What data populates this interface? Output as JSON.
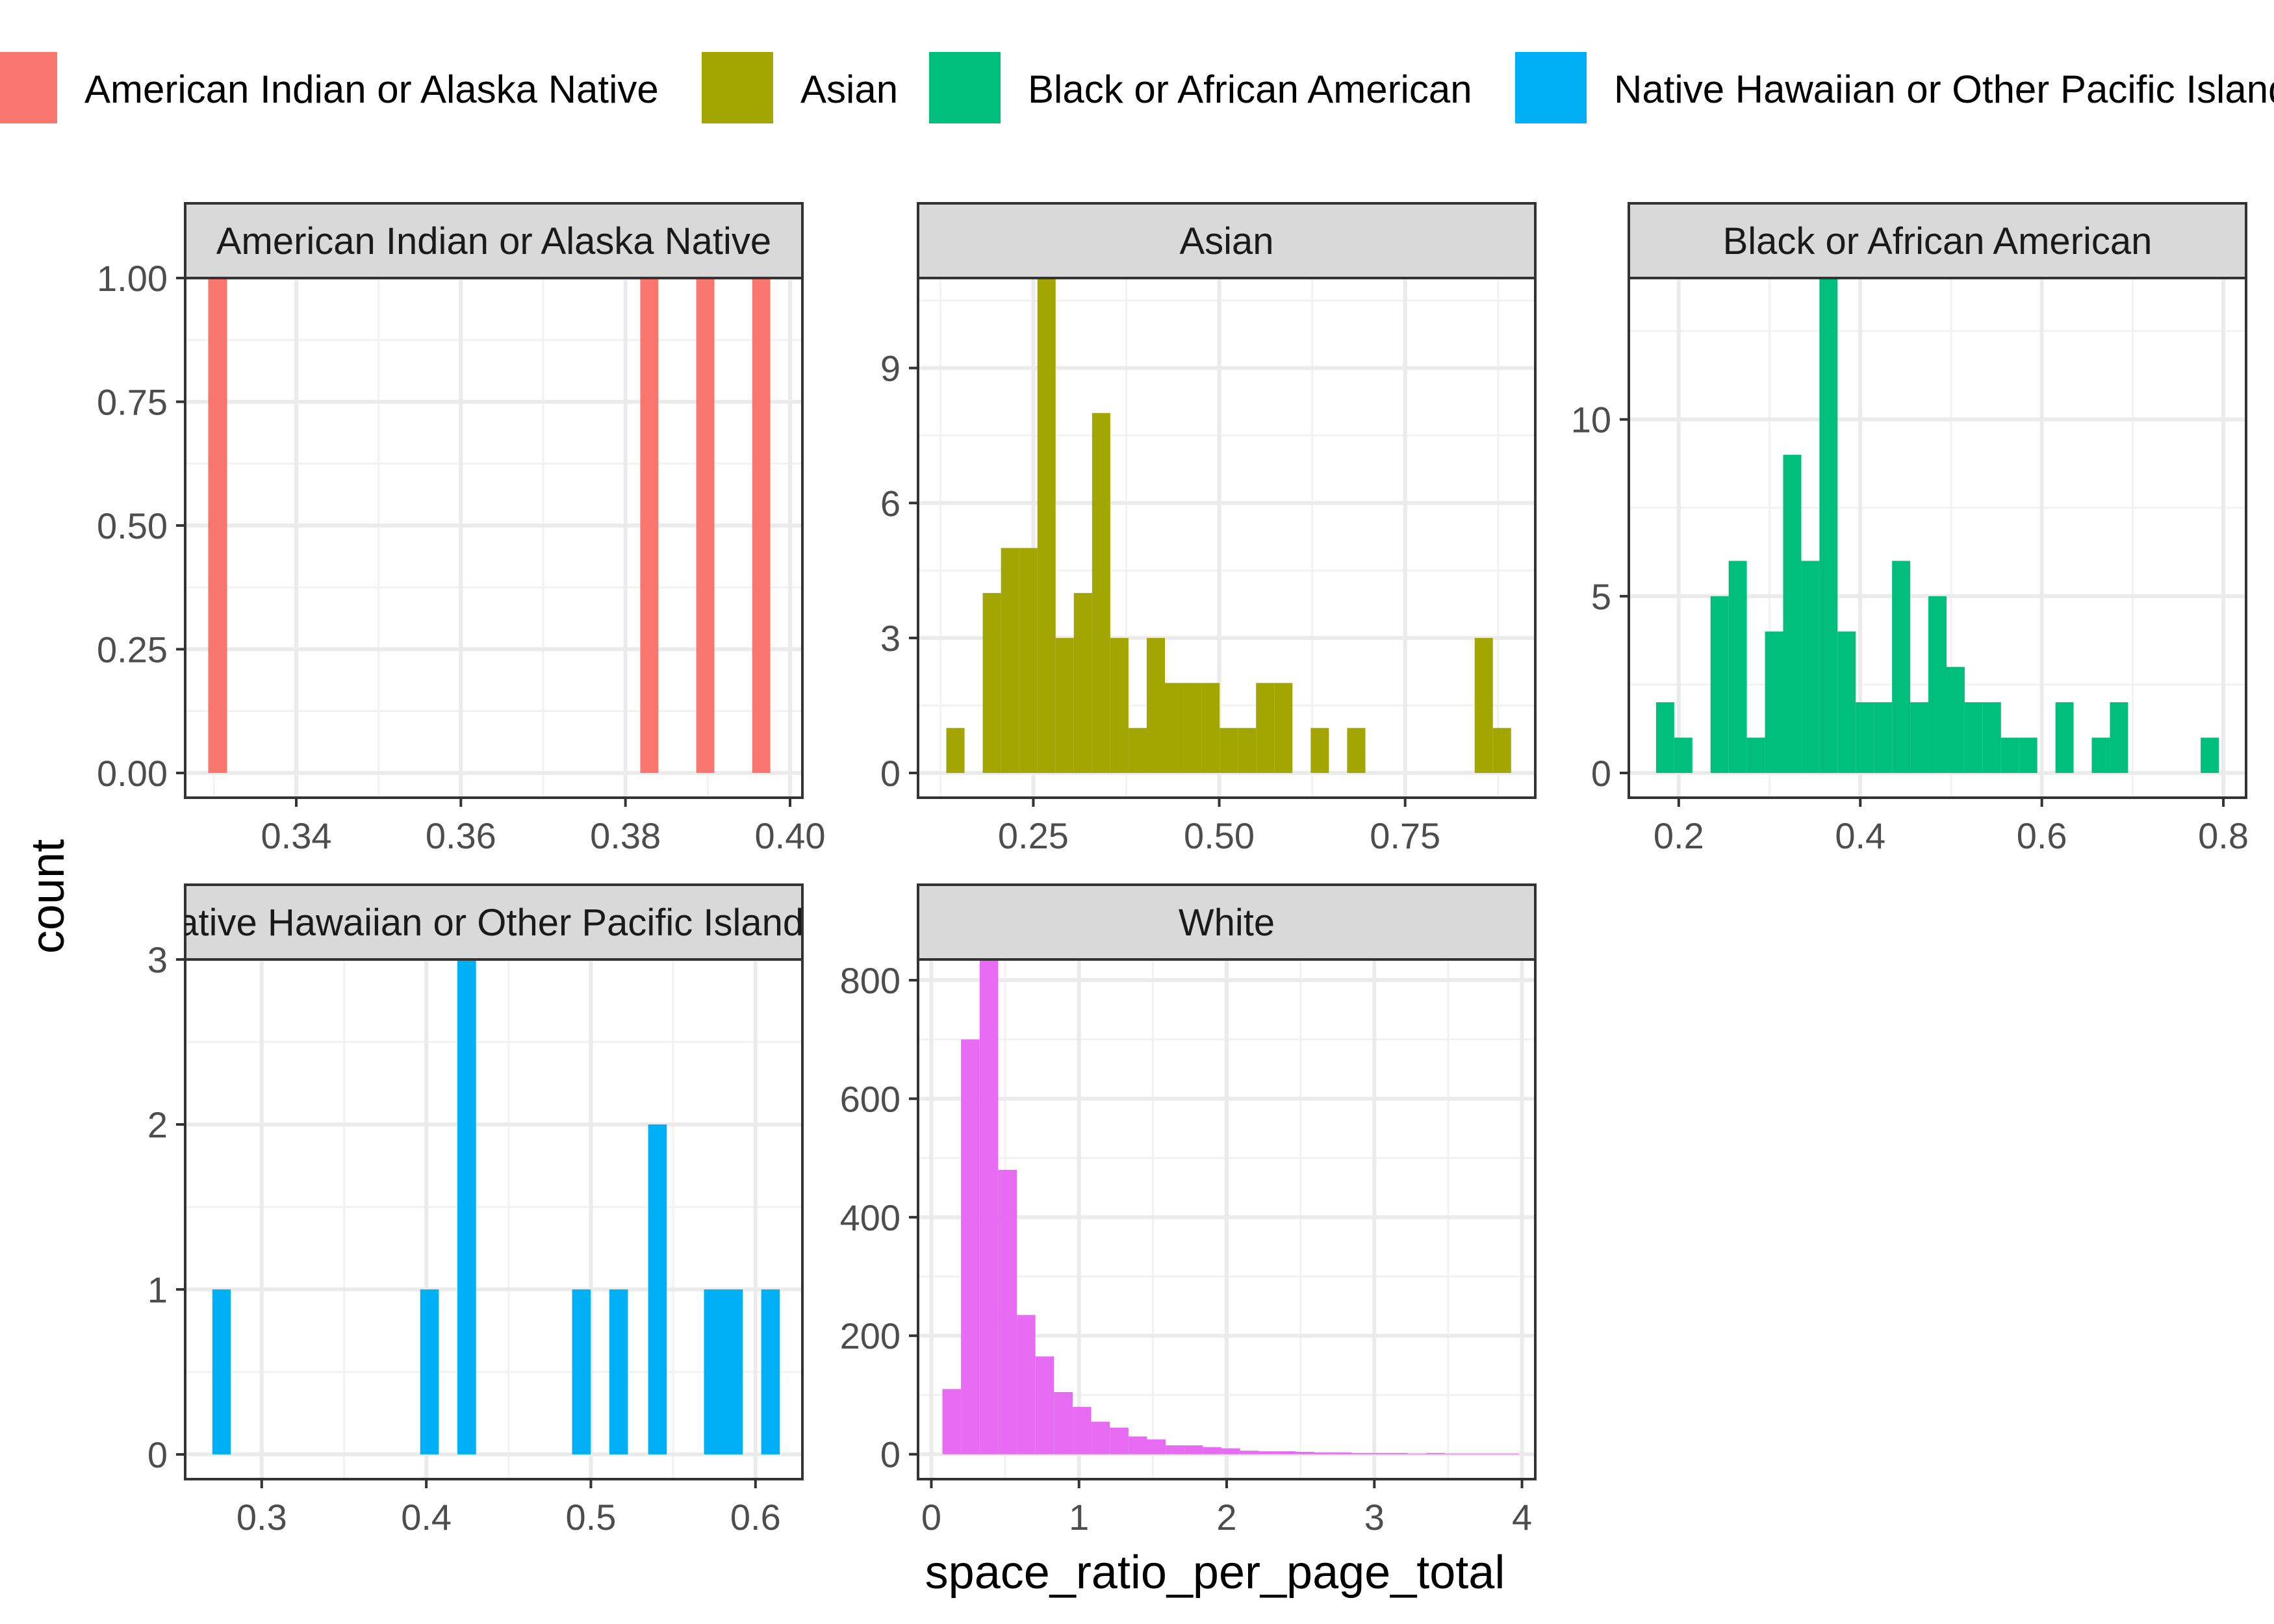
{
  "chart_data": {
    "type": "bar",
    "facet_wrap": true,
    "xlabel": "space_ratio_per_page_total",
    "ylabel": "count",
    "legend_position": "top",
    "grid": true,
    "legend": [
      {
        "label": "American Indian or Alaska Native",
        "color": "#F8766D"
      },
      {
        "label": "Asian",
        "color": "#A3A500"
      },
      {
        "label": "Black or African American",
        "color": "#00BF7D"
      },
      {
        "label": "Native Hawaiian or Other Pacific Islander",
        "color": "#00B0F6"
      }
    ],
    "panels": [
      {
        "id": "aian",
        "title": "American Indian or Alaska Native",
        "color": "#F8766D",
        "xlim": [
          0.3265,
          0.4015
        ],
        "ylim": [
          -0.05,
          1.0
        ],
        "xticks": [
          0.34,
          0.36,
          0.38,
          0.4
        ],
        "xtick_labels": [
          "0.34",
          "0.36",
          "0.38",
          "0.40"
        ],
        "yticks": [
          0,
          0.25,
          0.5,
          0.75,
          1.0
        ],
        "ytick_labels": [
          "0.00",
          "0.25",
          "0.50",
          "0.75",
          "1.00"
        ],
        "bars": [
          {
            "x0": 0.3293,
            "x1": 0.3316,
            "count": 1
          },
          {
            "x0": 0.3818,
            "x1": 0.384,
            "count": 1
          },
          {
            "x0": 0.3886,
            "x1": 0.3908,
            "count": 1
          },
          {
            "x0": 0.3954,
            "x1": 0.3976,
            "count": 1
          }
        ]
      },
      {
        "id": "asian",
        "title": "Asian",
        "color": "#A3A500",
        "xlim": [
          0.095,
          0.925
        ],
        "ylim": [
          -0.55,
          11.0
        ],
        "xticks": [
          0.25,
          0.5,
          0.75
        ],
        "xtick_labels": [
          "0.25",
          "0.50",
          "0.75"
        ],
        "yticks": [
          0,
          3,
          6,
          9
        ],
        "ytick_labels": [
          "0",
          "3",
          "6",
          "9"
        ],
        "bars": [
          {
            "x0": 0.133,
            "x1": 0.1575,
            "count": 1
          },
          {
            "x0": 0.182,
            "x1": 0.2065,
            "count": 4
          },
          {
            "x0": 0.2065,
            "x1": 0.231,
            "count": 5
          },
          {
            "x0": 0.231,
            "x1": 0.2555,
            "count": 5
          },
          {
            "x0": 0.2555,
            "x1": 0.28,
            "count": 11
          },
          {
            "x0": 0.28,
            "x1": 0.3045,
            "count": 3
          },
          {
            "x0": 0.3045,
            "x1": 0.329,
            "count": 4
          },
          {
            "x0": 0.329,
            "x1": 0.3535,
            "count": 8
          },
          {
            "x0": 0.3535,
            "x1": 0.378,
            "count": 3
          },
          {
            "x0": 0.378,
            "x1": 0.4025,
            "count": 1
          },
          {
            "x0": 0.4025,
            "x1": 0.427,
            "count": 3
          },
          {
            "x0": 0.427,
            "x1": 0.4515,
            "count": 2
          },
          {
            "x0": 0.4515,
            "x1": 0.476,
            "count": 2
          },
          {
            "x0": 0.476,
            "x1": 0.5005,
            "count": 2
          },
          {
            "x0": 0.5005,
            "x1": 0.525,
            "count": 1
          },
          {
            "x0": 0.525,
            "x1": 0.5495,
            "count": 1
          },
          {
            "x0": 0.5495,
            "x1": 0.574,
            "count": 2
          },
          {
            "x0": 0.574,
            "x1": 0.5985,
            "count": 2
          },
          {
            "x0": 0.623,
            "x1": 0.6475,
            "count": 1
          },
          {
            "x0": 0.672,
            "x1": 0.6965,
            "count": 1
          },
          {
            "x0": 0.8435,
            "x1": 0.868,
            "count": 3
          },
          {
            "x0": 0.868,
            "x1": 0.8925,
            "count": 1
          }
        ]
      },
      {
        "id": "black",
        "title": "Black or African American",
        "color": "#00BF7D",
        "xlim": [
          0.145,
          0.825
        ],
        "ylim": [
          -0.7,
          14.0
        ],
        "xticks": [
          0.2,
          0.4,
          0.6,
          0.8
        ],
        "xtick_labels": [
          "0.2",
          "0.4",
          "0.6",
          "0.8"
        ],
        "yticks": [
          0,
          5,
          10
        ],
        "ytick_labels": [
          "0",
          "5",
          "10"
        ],
        "bars": [
          {
            "x0": 0.175,
            "x1": 0.195,
            "count": 2
          },
          {
            "x0": 0.195,
            "x1": 0.215,
            "count": 1
          },
          {
            "x0": 0.235,
            "x1": 0.255,
            "count": 5
          },
          {
            "x0": 0.255,
            "x1": 0.275,
            "count": 6
          },
          {
            "x0": 0.275,
            "x1": 0.295,
            "count": 1
          },
          {
            "x0": 0.295,
            "x1": 0.315,
            "count": 4
          },
          {
            "x0": 0.315,
            "x1": 0.335,
            "count": 9
          },
          {
            "x0": 0.335,
            "x1": 0.355,
            "count": 6
          },
          {
            "x0": 0.355,
            "x1": 0.375,
            "count": 14
          },
          {
            "x0": 0.375,
            "x1": 0.395,
            "count": 4
          },
          {
            "x0": 0.395,
            "x1": 0.415,
            "count": 2
          },
          {
            "x0": 0.415,
            "x1": 0.435,
            "count": 2
          },
          {
            "x0": 0.435,
            "x1": 0.455,
            "count": 6
          },
          {
            "x0": 0.455,
            "x1": 0.475,
            "count": 2
          },
          {
            "x0": 0.475,
            "x1": 0.495,
            "count": 5
          },
          {
            "x0": 0.495,
            "x1": 0.515,
            "count": 3
          },
          {
            "x0": 0.515,
            "x1": 0.535,
            "count": 2
          },
          {
            "x0": 0.535,
            "x1": 0.555,
            "count": 2
          },
          {
            "x0": 0.555,
            "x1": 0.575,
            "count": 1
          },
          {
            "x0": 0.575,
            "x1": 0.595,
            "count": 1
          },
          {
            "x0": 0.615,
            "x1": 0.635,
            "count": 2
          },
          {
            "x0": 0.655,
            "x1": 0.675,
            "count": 1
          },
          {
            "x0": 0.675,
            "x1": 0.695,
            "count": 2
          },
          {
            "x0": 0.775,
            "x1": 0.795,
            "count": 1
          }
        ]
      },
      {
        "id": "nhpi",
        "title": "Native Hawaiian or Other Pacific Islander",
        "color": "#00B0F6",
        "xlim": [
          0.2535,
          0.6285
        ],
        "ylim": [
          -0.15,
          3.0
        ],
        "xticks": [
          0.3,
          0.4,
          0.5,
          0.6
        ],
        "xtick_labels": [
          "0.3",
          "0.4",
          "0.5",
          "0.6"
        ],
        "yticks": [
          0,
          1,
          2,
          3
        ],
        "ytick_labels": [
          "0",
          "1",
          "2",
          "3"
        ],
        "bars": [
          {
            "x0": 0.27,
            "x1": 0.2812,
            "count": 1
          },
          {
            "x0": 0.3963,
            "x1": 0.4076,
            "count": 1
          },
          {
            "x0": 0.4189,
            "x1": 0.4302,
            "count": 3
          },
          {
            "x0": 0.4886,
            "x1": 0.4999,
            "count": 1
          },
          {
            "x0": 0.5112,
            "x1": 0.5225,
            "count": 1
          },
          {
            "x0": 0.5348,
            "x1": 0.5461,
            "count": 2
          },
          {
            "x0": 0.5687,
            "x1": 0.5923,
            "count": 1
          },
          {
            "x0": 0.6035,
            "x1": 0.6148,
            "count": 1
          }
        ]
      },
      {
        "id": "white",
        "title": "White",
        "color": "#E76BF3",
        "xlim": [
          -0.09,
          4.09
        ],
        "ylim": [
          -42,
          835
        ],
        "xticks": [
          0,
          1,
          2,
          3,
          4
        ],
        "xtick_labels": [
          "0",
          "1",
          "2",
          "3",
          "4"
        ],
        "yticks": [
          0,
          200,
          400,
          600,
          800
        ],
        "ytick_labels": [
          "0",
          "200",
          "400",
          "600",
          "800"
        ],
        "bars": [
          {
            "x0": 0.075,
            "x1": 0.201,
            "count": 110
          },
          {
            "x0": 0.201,
            "x1": 0.327,
            "count": 700
          },
          {
            "x0": 0.327,
            "x1": 0.453,
            "count": 835
          },
          {
            "x0": 0.453,
            "x1": 0.579,
            "count": 480
          },
          {
            "x0": 0.579,
            "x1": 0.705,
            "count": 235
          },
          {
            "x0": 0.705,
            "x1": 0.831,
            "count": 165
          },
          {
            "x0": 0.831,
            "x1": 0.957,
            "count": 105
          },
          {
            "x0": 0.957,
            "x1": 1.083,
            "count": 80
          },
          {
            "x0": 1.083,
            "x1": 1.209,
            "count": 55
          },
          {
            "x0": 1.209,
            "x1": 1.335,
            "count": 45
          },
          {
            "x0": 1.335,
            "x1": 1.461,
            "count": 30
          },
          {
            "x0": 1.461,
            "x1": 1.587,
            "count": 25
          },
          {
            "x0": 1.587,
            "x1": 1.713,
            "count": 15
          },
          {
            "x0": 1.713,
            "x1": 1.839,
            "count": 15
          },
          {
            "x0": 1.839,
            "x1": 1.965,
            "count": 12
          },
          {
            "x0": 1.965,
            "x1": 2.091,
            "count": 10
          },
          {
            "x0": 2.091,
            "x1": 2.217,
            "count": 6
          },
          {
            "x0": 2.217,
            "x1": 2.343,
            "count": 5
          },
          {
            "x0": 2.343,
            "x1": 2.469,
            "count": 5
          },
          {
            "x0": 2.469,
            "x1": 2.595,
            "count": 4
          },
          {
            "x0": 2.595,
            "x1": 2.721,
            "count": 3
          },
          {
            "x0": 2.721,
            "x1": 2.847,
            "count": 3
          },
          {
            "x0": 2.847,
            "x1": 2.973,
            "count": 2
          },
          {
            "x0": 2.973,
            "x1": 3.099,
            "count": 2
          },
          {
            "x0": 3.099,
            "x1": 3.225,
            "count": 2
          },
          {
            "x0": 3.225,
            "x1": 3.351,
            "count": 1
          },
          {
            "x0": 3.351,
            "x1": 3.477,
            "count": 2
          },
          {
            "x0": 3.477,
            "x1": 3.603,
            "count": 1
          },
          {
            "x0": 3.603,
            "x1": 3.729,
            "count": 1
          },
          {
            "x0": 3.729,
            "x1": 3.855,
            "count": 1
          },
          {
            "x0": 3.855,
            "x1": 3.981,
            "count": 1
          }
        ]
      }
    ]
  }
}
